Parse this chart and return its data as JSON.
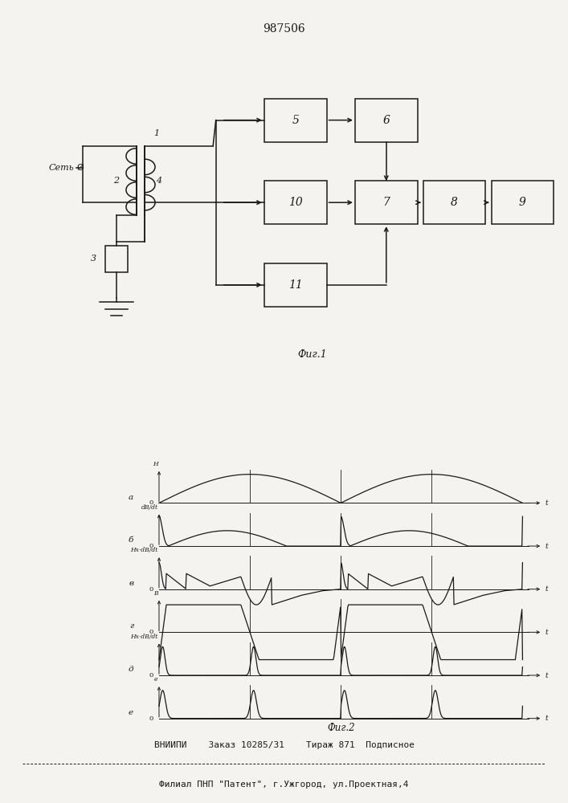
{
  "title": "987506",
  "fig1_caption": "Фиг.1",
  "fig2_caption": "Фиг.2",
  "footer_line1": "ВНИИПИ    Заказ 10285/31    Тираж 871  Подписное",
  "footer_line2": "Филиал ПНП \"Патент\", г.Ужгород, ул.Проектная,4",
  "bg_color": "#f5f3ef",
  "line_color": "#1a1a1a"
}
